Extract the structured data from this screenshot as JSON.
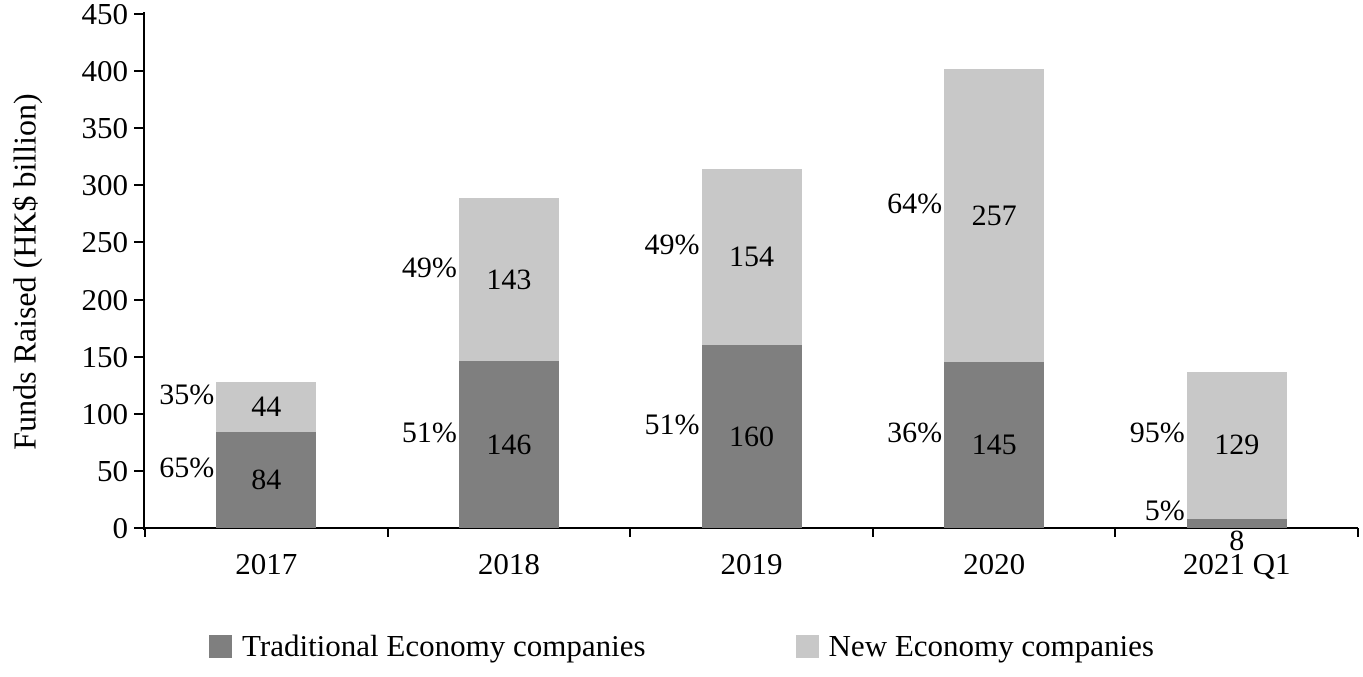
{
  "chart_data": {
    "type": "bar",
    "stacked": true,
    "title": "",
    "xlabel": "",
    "ylabel": "Funds Raised (HK$ billion)",
    "ylim": [
      0,
      450
    ],
    "ytick_step": 50,
    "yticks": [
      0,
      50,
      100,
      150,
      200,
      250,
      300,
      350,
      400,
      450
    ],
    "grid": false,
    "legend_position": "bottom",
    "categories": [
      "2017",
      "2018",
      "2019",
      "2020",
      "2021 Q1"
    ],
    "series": [
      {
        "name": "Traditional Economy companies",
        "color": "#7f7f7f",
        "values": [
          84,
          146,
          160,
          145,
          8
        ],
        "percent_labels": [
          "65%",
          "51%",
          "51%",
          "36%",
          "5%"
        ]
      },
      {
        "name": "New Economy companies",
        "color": "#c8c8c8",
        "values": [
          44,
          143,
          154,
          257,
          129
        ],
        "percent_labels": [
          "35%",
          "49%",
          "49%",
          "64%",
          "95%"
        ]
      }
    ],
    "axis_color": "#000000",
    "text_color": "#000000"
  }
}
